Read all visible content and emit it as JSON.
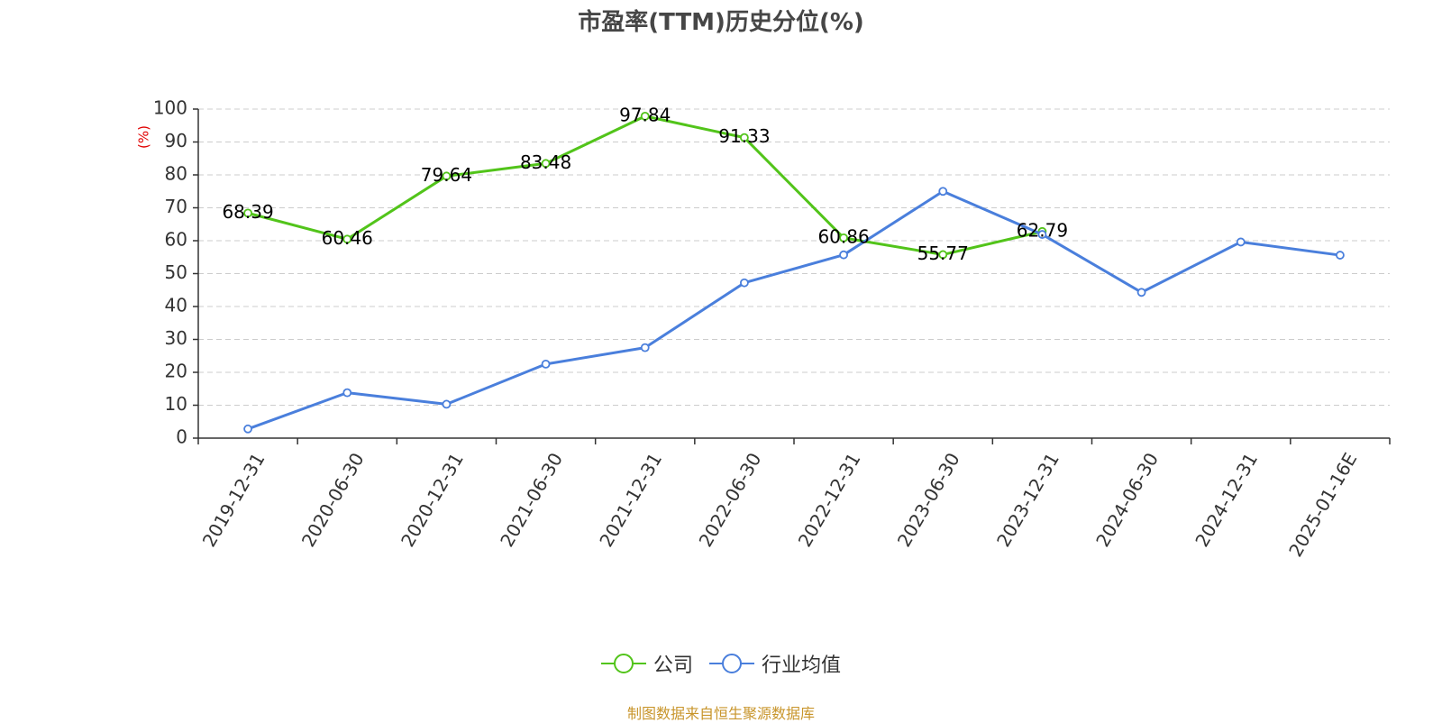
{
  "source_note": "制图数据来自恒生聚源数据库",
  "chart_data": {
    "type": "line",
    "title": "市盈率(TTM)历史分位(%)",
    "ylabel": "(%)",
    "xlabel": "",
    "ylim": [
      0,
      100
    ],
    "yticks": [
      0,
      10,
      20,
      30,
      40,
      50,
      60,
      70,
      80,
      90,
      100
    ],
    "grid": true,
    "legend_position": "bottom-center",
    "categories": [
      "2019-12-31",
      "2020-06-30",
      "2020-12-31",
      "2021-06-30",
      "2021-12-31",
      "2022-06-30",
      "2022-12-31",
      "2023-06-30",
      "2023-12-31",
      "2024-06-30",
      "2024-12-31",
      "2025-01-16E"
    ],
    "series": [
      {
        "name": "公司",
        "color": "#52c41a",
        "values": [
          68.39,
          60.46,
          79.64,
          83.48,
          97.84,
          91.33,
          60.86,
          55.77,
          62.79,
          null,
          null,
          null
        ],
        "data_labels": [
          "68.39",
          "60.46",
          "79.64",
          "83.48",
          "97.84",
          "91.33",
          "60.86",
          "55.77",
          "62.79"
        ]
      },
      {
        "name": "行业均值",
        "color": "#4a7fdc",
        "values": [
          2.8,
          13.8,
          10.3,
          22.5,
          27.5,
          47.2,
          55.7,
          75.0,
          61.9,
          44.3,
          59.6,
          55.6
        ]
      }
    ]
  }
}
